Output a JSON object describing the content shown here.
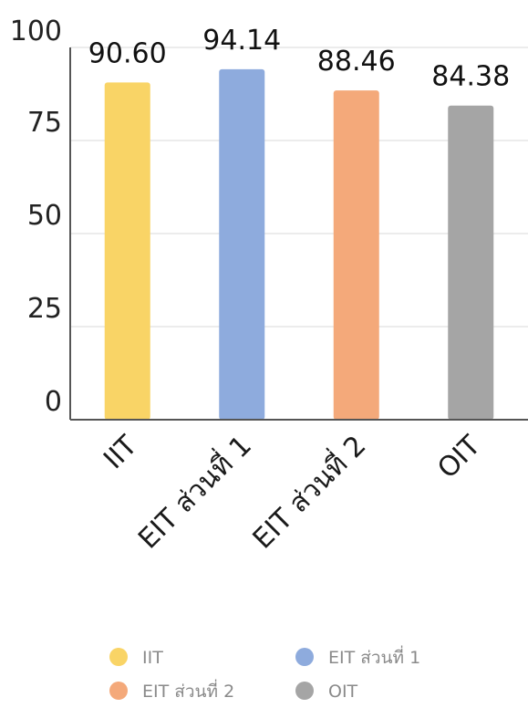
{
  "chart_data": {
    "type": "bar",
    "categories": [
      "IIT",
      "EIT ส่วนที่ 1",
      "EIT ส่วนที่ 2",
      "OIT"
    ],
    "values": [
      90.6,
      94.14,
      88.46,
      84.38
    ],
    "value_labels": [
      "90.60",
      "94.14",
      "88.46",
      "84.38"
    ],
    "colors": [
      "#f9d466",
      "#8eabdd",
      "#f4a97a",
      "#a5a5a5"
    ],
    "ylim": [
      0,
      100
    ],
    "yticks": [
      0,
      25,
      50,
      75,
      100
    ],
    "grid": true,
    "legend_position": "bottom",
    "legend": [
      "IIT",
      "EIT ส่วนที่ 1",
      "EIT ส่วนที่ 2",
      "OIT"
    ],
    "title": "",
    "xlabel": "",
    "ylabel": ""
  }
}
